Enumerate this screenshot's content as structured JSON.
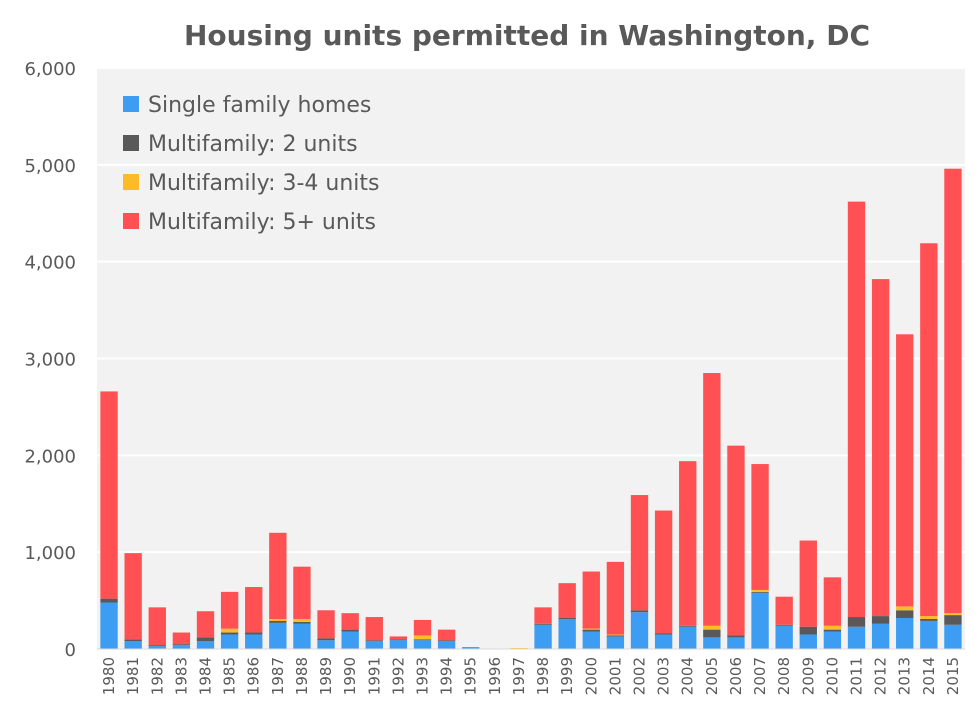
{
  "chart_data": {
    "type": "bar",
    "stacked": true,
    "title": "Housing units permitted in Washington, DC",
    "xlabel": "",
    "ylabel": "",
    "ylim": [
      0,
      6000
    ],
    "yticks": [
      0,
      1000,
      2000,
      3000,
      4000,
      5000,
      6000
    ],
    "ytick_labels": [
      "0",
      "1,000",
      "2,000",
      "3,000",
      "4,000",
      "5,000",
      "6,000"
    ],
    "grid": true,
    "legend_position": "top-left",
    "categories": [
      "1980",
      "1981",
      "1982",
      "1983",
      "1984",
      "1985",
      "1986",
      "1987",
      "1988",
      "1989",
      "1990",
      "1991",
      "1992",
      "1993",
      "1994",
      "1995",
      "1996",
      "1997",
      "1998",
      "1999",
      "2000",
      "2001",
      "2002",
      "2003",
      "2004",
      "2005",
      "2006",
      "2007",
      "2008",
      "2009",
      "2010",
      "2011",
      "2012",
      "2013",
      "2014",
      "2015"
    ],
    "series": [
      {
        "name": "Single family homes",
        "color": "#3d9df3",
        "values": [
          480,
          80,
          30,
          40,
          80,
          150,
          150,
          270,
          260,
          90,
          180,
          80,
          90,
          90,
          80,
          20,
          0,
          0,
          250,
          310,
          180,
          130,
          380,
          150,
          230,
          120,
          120,
          580,
          240,
          150,
          180,
          230,
          260,
          320,
          290,
          250
        ]
      },
      {
        "name": "Multifamily: 2 units",
        "color": "#595959",
        "values": [
          40,
          20,
          10,
          10,
          40,
          20,
          20,
          20,
          20,
          20,
          20,
          10,
          10,
          10,
          10,
          0,
          0,
          0,
          10,
          10,
          20,
          10,
          20,
          10,
          10,
          80,
          20,
          10,
          10,
          80,
          20,
          100,
          80,
          80,
          20,
          100
        ]
      },
      {
        "name": "Multifamily: 3-4 units",
        "color": "#fbbc27",
        "values": [
          0,
          0,
          0,
          0,
          0,
          40,
          0,
          20,
          30,
          0,
          0,
          0,
          0,
          40,
          0,
          0,
          0,
          10,
          0,
          0,
          10,
          10,
          0,
          0,
          0,
          40,
          0,
          20,
          0,
          0,
          40,
          0,
          0,
          40,
          30,
          20
        ]
      },
      {
        "name": "Multifamily: 5+ units",
        "color": "#ff5153",
        "values": [
          2140,
          890,
          390,
          120,
          270,
          380,
          470,
          890,
          540,
          290,
          170,
          240,
          30,
          160,
          110,
          0,
          0,
          0,
          170,
          360,
          590,
          750,
          1190,
          1270,
          1700,
          2610,
          1960,
          1300,
          290,
          890,
          500,
          4290,
          3480,
          2810,
          3850,
          4590
        ]
      }
    ]
  }
}
